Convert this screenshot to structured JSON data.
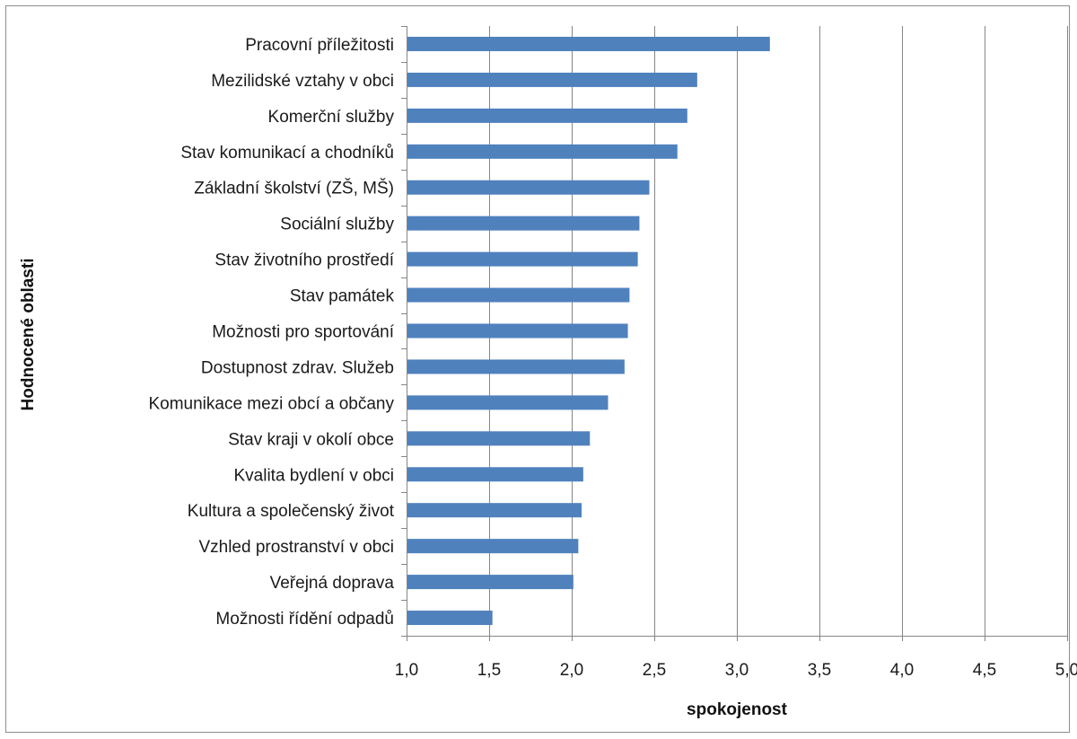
{
  "chart_data": {
    "type": "bar",
    "orientation": "horizontal",
    "title": "",
    "xlabel": "spokojenost",
    "ylabel": "Hodnocené oblasti",
    "xlim": [
      1.0,
      5.0
    ],
    "x_ticks": [
      "1,0",
      "1,5",
      "2,0",
      "2,5",
      "3,0",
      "3,5",
      "4,0",
      "4,5",
      "5,0"
    ],
    "x_tick_values": [
      1.0,
      1.5,
      2.0,
      2.5,
      3.0,
      3.5,
      4.0,
      4.5,
      5.0
    ],
    "grid": "vertical",
    "legend": "none",
    "bar_color": "#4f81bd",
    "categories": [
      "Pracovní příležitosti",
      "Mezilidské vztahy v obci",
      "Komerční služby",
      "Stav komunikací a chodníků",
      "Základní školství (ZŠ, MŠ)",
      "Sociální služby",
      "Stav životního prostředí",
      "Stav památek",
      "Možnosti pro sportování",
      "Dostupnost zdrav. Služeb",
      "Komunikace mezi obcí a občany",
      "Stav kraji v okolí obce",
      "Kvalita bydlení v obci",
      "Kultura a společenský život",
      "Vzhled prostranství v obci",
      "Veřejná doprava",
      "Možnosti řídění odpadů"
    ],
    "values": [
      3.2,
      2.76,
      2.7,
      2.64,
      2.47,
      2.41,
      2.4,
      2.35,
      2.34,
      2.32,
      2.22,
      2.11,
      2.07,
      2.06,
      2.04,
      2.01,
      1.52
    ]
  }
}
